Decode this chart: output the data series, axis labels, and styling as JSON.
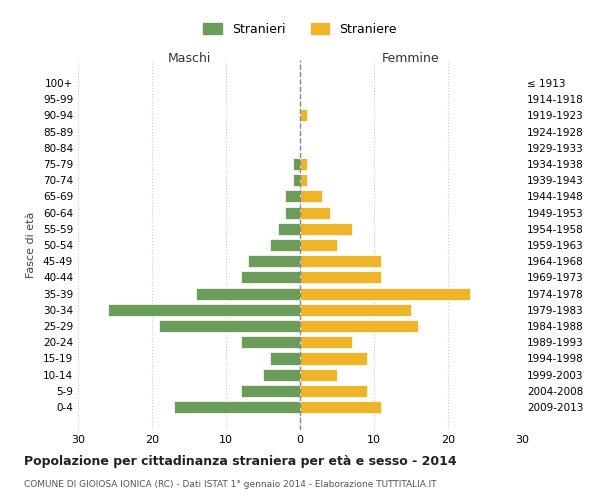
{
  "age_groups": [
    "0-4",
    "5-9",
    "10-14",
    "15-19",
    "20-24",
    "25-29",
    "30-34",
    "35-39",
    "40-44",
    "45-49",
    "50-54",
    "55-59",
    "60-64",
    "65-69",
    "70-74",
    "75-79",
    "80-84",
    "85-89",
    "90-94",
    "95-99",
    "100+"
  ],
  "birth_years": [
    "2009-2013",
    "2004-2008",
    "1999-2003",
    "1994-1998",
    "1989-1993",
    "1984-1988",
    "1979-1983",
    "1974-1978",
    "1969-1973",
    "1964-1968",
    "1959-1963",
    "1954-1958",
    "1949-1953",
    "1944-1948",
    "1939-1943",
    "1934-1938",
    "1929-1933",
    "1924-1928",
    "1919-1923",
    "1914-1918",
    "≤ 1913"
  ],
  "maschi": [
    17,
    8,
    5,
    4,
    8,
    19,
    26,
    14,
    8,
    7,
    4,
    3,
    2,
    2,
    1,
    1,
    0,
    0,
    0,
    0,
    0
  ],
  "femmine": [
    11,
    9,
    5,
    9,
    7,
    16,
    15,
    23,
    11,
    11,
    5,
    7,
    4,
    3,
    1,
    1,
    0,
    0,
    1,
    0,
    0
  ],
  "maschi_color": "#6a9c5a",
  "femmine_color": "#f0b429",
  "title": "Popolazione per cittadinanza straniera per età e sesso - 2014",
  "subtitle": "COMUNE DI GIOIOSA IONICA (RC) - Dati ISTAT 1° gennaio 2014 - Elaborazione TUTTITALIA.IT",
  "legend_maschi": "Stranieri",
  "legend_femmine": "Straniere",
  "xlabel_left": "Maschi",
  "xlabel_right": "Femmine",
  "ylabel_left": "Fasce di età",
  "xlim": 30,
  "background_color": "#ffffff",
  "grid_color": "#cccccc"
}
